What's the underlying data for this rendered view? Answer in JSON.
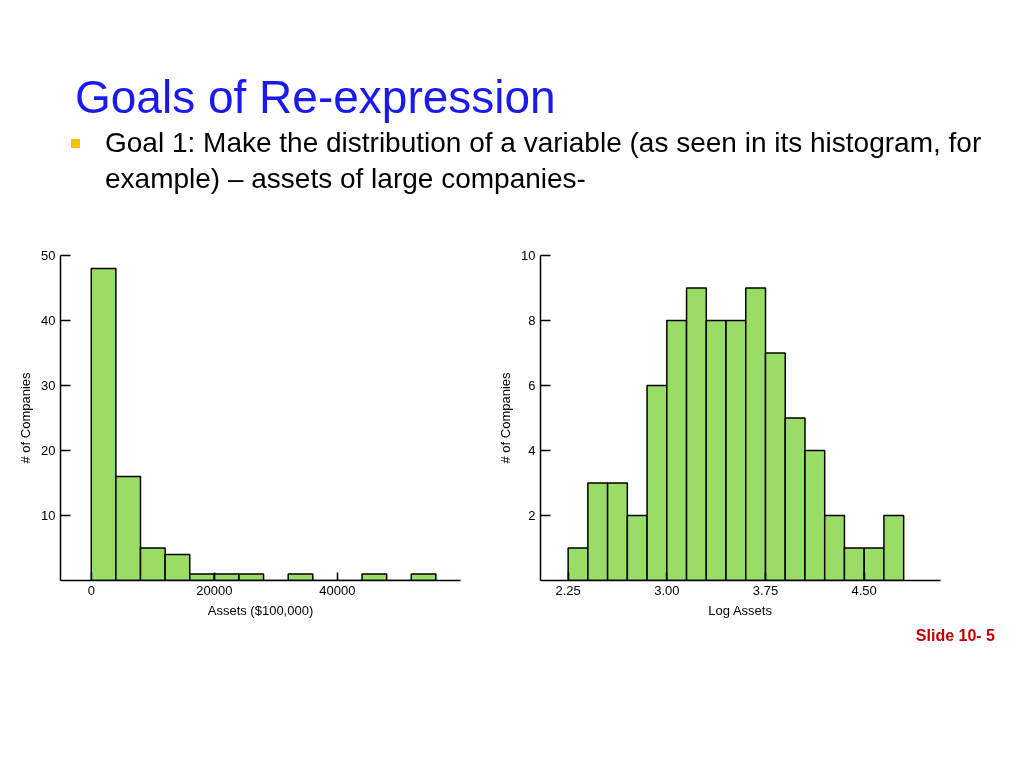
{
  "chart_data": [
    {
      "type": "histogram",
      "title": "Goals of Re-expression",
      "subtitle": "Goal 1: Make the distribution of a variable (as seen in its histogram, for example) – assets of large companies-",
      "xlabel": "Assets ($100,000)",
      "ylabel": "# of Companies",
      "color": "#99dd66",
      "bins": [
        0,
        4000,
        8000,
        12000,
        16000,
        20000,
        24000,
        28000,
        32000,
        36000,
        40000,
        44000,
        48000,
        52000,
        56000
      ],
      "values": [
        48,
        16,
        5,
        4,
        1,
        1,
        1,
        0,
        1,
        0,
        0,
        1,
        0,
        1
      ],
      "xlim": [
        -5000,
        60000
      ],
      "xticks": [
        0,
        20000,
        40000
      ],
      "ylim": [
        0,
        50
      ],
      "yticks": [
        10,
        20,
        30,
        40,
        50
      ],
      "grid": false
    },
    {
      "type": "histogram",
      "xlabel": "Log Assets",
      "ylabel": "# of Companies",
      "color": "#99dd66",
      "bins": [
        2.25,
        2.4,
        2.55,
        2.7,
        2.85,
        3.0,
        3.15,
        3.3,
        3.45,
        3.6,
        3.75,
        3.9,
        4.05,
        4.2,
        4.35,
        4.5,
        4.65,
        4.8
      ],
      "values": [
        1,
        3,
        3,
        2,
        6,
        8,
        9,
        8,
        8,
        9,
        7,
        5,
        4,
        2,
        1,
        1,
        2
      ],
      "xlim": [
        2.04,
        5.08
      ],
      "xticks": [
        {
          "value": 2.25,
          "label": "2.25"
        },
        {
          "value": 3.0,
          "label": "3.00"
        },
        {
          "value": 3.75,
          "label": "3.75"
        },
        {
          "value": 4.5,
          "label": "4.50"
        }
      ],
      "ylim": [
        0,
        10
      ],
      "yticks": [
        2,
        4,
        6,
        8,
        10
      ],
      "grid": false,
      "annotations": [
        "Slide 10- 5"
      ]
    }
  ]
}
